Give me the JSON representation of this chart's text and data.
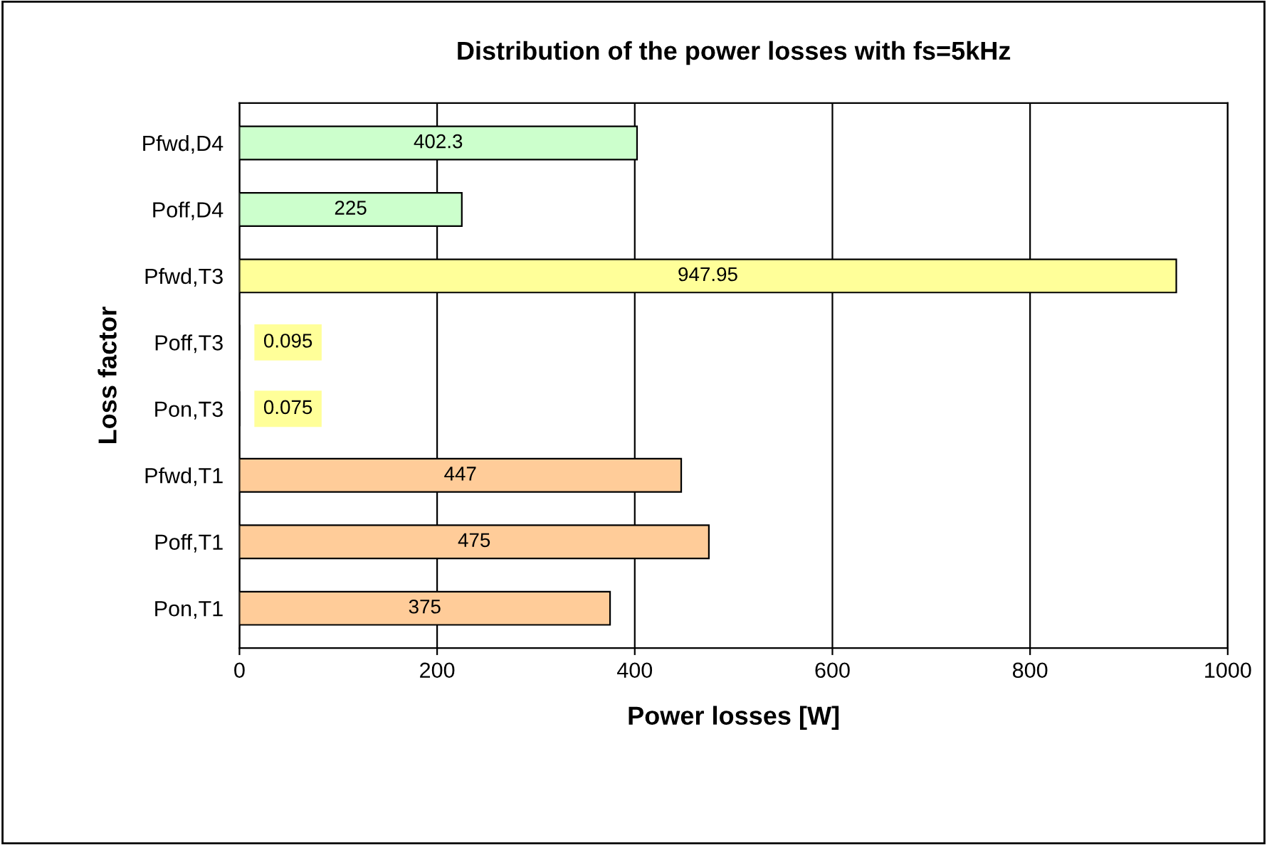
{
  "chart_data": {
    "type": "bar",
    "orientation": "horizontal",
    "title": "Distribution of the power losses with fs=5kHz",
    "xlabel": "Power losses [W]",
    "ylabel": "Loss factor",
    "categories": [
      "Pfwd,D4",
      "Poff,D4",
      "Pfwd,T3",
      "Poff,T3",
      "Pon,T3",
      "Pfwd,T1",
      "Poff,T1",
      "Pon,T1"
    ],
    "values": [
      402.3,
      225,
      947.95,
      0.095,
      0.075,
      447,
      475,
      375
    ],
    "colors": [
      "#ccffcc",
      "#ccffcc",
      "#ffff99",
      "#ffff99",
      "#ffff99",
      "#ffcc99",
      "#ffcc99",
      "#ffcc99"
    ],
    "xlim": [
      0,
      1000
    ],
    "xticks": [
      0,
      200,
      400,
      600,
      800,
      1000
    ],
    "grid": "x",
    "data_labels": true
  }
}
